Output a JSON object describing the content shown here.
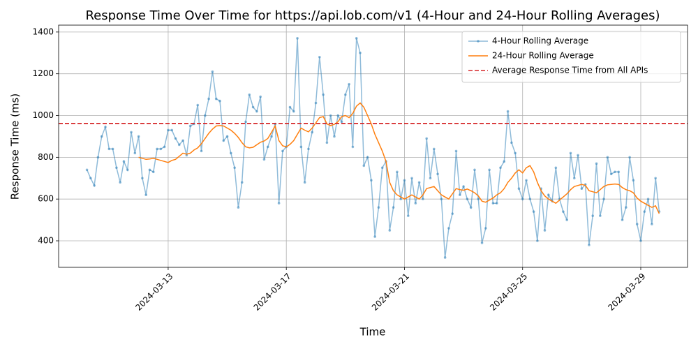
{
  "chart_data": {
    "type": "line",
    "title": "Response Time Over Time for https://api.lob.com/v1 (4-Hour and 24-Hour Rolling Averages)",
    "x_label": "Time",
    "y_label": "Response Time (ms)",
    "x": [
      "2024-03-10 06:00",
      "2024-03-10 09:00",
      "2024-03-10 12:00",
      "2024-03-10 15:00",
      "2024-03-10 18:00",
      "2024-03-10 21:00",
      "2024-03-11 00:00",
      "2024-03-11 03:00",
      "2024-03-11 06:00",
      "2024-03-11 09:00",
      "2024-03-11 12:00",
      "2024-03-11 15:00",
      "2024-03-11 18:00",
      "2024-03-11 21:00",
      "2024-03-12 00:00",
      "2024-03-12 03:00",
      "2024-03-12 06:00",
      "2024-03-12 09:00",
      "2024-03-12 12:00",
      "2024-03-12 15:00",
      "2024-03-12 18:00",
      "2024-03-12 21:00",
      "2024-03-13 00:00",
      "2024-03-13 03:00",
      "2024-03-13 06:00",
      "2024-03-13 09:00",
      "2024-03-13 12:00",
      "2024-03-13 15:00",
      "2024-03-13 18:00",
      "2024-03-13 21:00",
      "2024-03-14 00:00",
      "2024-03-14 03:00",
      "2024-03-14 06:00",
      "2024-03-14 09:00",
      "2024-03-14 12:00",
      "2024-03-14 15:00",
      "2024-03-14 18:00",
      "2024-03-14 21:00",
      "2024-03-15 00:00",
      "2024-03-15 03:00",
      "2024-03-15 06:00",
      "2024-03-15 09:00",
      "2024-03-15 12:00",
      "2024-03-15 15:00",
      "2024-03-15 18:00",
      "2024-03-15 21:00",
      "2024-03-16 00:00",
      "2024-03-16 03:00",
      "2024-03-16 06:00",
      "2024-03-16 09:00",
      "2024-03-16 12:00",
      "2024-03-16 15:00",
      "2024-03-16 18:00",
      "2024-03-16 21:00",
      "2024-03-17 00:00",
      "2024-03-17 03:00",
      "2024-03-17 06:00",
      "2024-03-17 09:00",
      "2024-03-17 12:00",
      "2024-03-17 15:00",
      "2024-03-17 18:00",
      "2024-03-17 21:00",
      "2024-03-18 00:00",
      "2024-03-18 03:00",
      "2024-03-18 06:00",
      "2024-03-18 09:00",
      "2024-03-18 12:00",
      "2024-03-18 15:00",
      "2024-03-18 18:00",
      "2024-03-18 21:00",
      "2024-03-19 00:00",
      "2024-03-19 03:00",
      "2024-03-19 06:00",
      "2024-03-19 09:00",
      "2024-03-19 12:00",
      "2024-03-19 15:00",
      "2024-03-19 18:00",
      "2024-03-19 21:00",
      "2024-03-20 00:00",
      "2024-03-20 03:00",
      "2024-03-20 06:00",
      "2024-03-20 09:00",
      "2024-03-20 12:00",
      "2024-03-20 15:00",
      "2024-03-20 18:00",
      "2024-03-20 21:00",
      "2024-03-21 00:00",
      "2024-03-21 03:00",
      "2024-03-21 06:00",
      "2024-03-21 09:00",
      "2024-03-21 12:00",
      "2024-03-21 15:00",
      "2024-03-21 18:00",
      "2024-03-21 21:00",
      "2024-03-22 00:00",
      "2024-03-22 03:00",
      "2024-03-22 06:00",
      "2024-03-22 09:00",
      "2024-03-22 12:00",
      "2024-03-22 15:00",
      "2024-03-22 18:00",
      "2024-03-22 21:00",
      "2024-03-23 00:00",
      "2024-03-23 03:00",
      "2024-03-23 06:00",
      "2024-03-23 09:00",
      "2024-03-23 12:00",
      "2024-03-23 15:00",
      "2024-03-23 18:00",
      "2024-03-23 21:00",
      "2024-03-24 00:00",
      "2024-03-24 03:00",
      "2024-03-24 06:00",
      "2024-03-24 09:00",
      "2024-03-24 12:00",
      "2024-03-24 15:00",
      "2024-03-24 18:00",
      "2024-03-24 21:00",
      "2024-03-25 00:00",
      "2024-03-25 03:00",
      "2024-03-25 06:00",
      "2024-03-25 09:00",
      "2024-03-25 12:00",
      "2024-03-25 15:00",
      "2024-03-25 18:00",
      "2024-03-25 21:00",
      "2024-03-26 00:00",
      "2024-03-26 03:00",
      "2024-03-26 06:00",
      "2024-03-26 09:00",
      "2024-03-26 12:00",
      "2024-03-26 15:00",
      "2024-03-26 18:00",
      "2024-03-26 21:00",
      "2024-03-27 00:00",
      "2024-03-27 03:00",
      "2024-03-27 06:00",
      "2024-03-27 09:00",
      "2024-03-27 12:00",
      "2024-03-27 15:00",
      "2024-03-27 18:00",
      "2024-03-27 21:00",
      "2024-03-28 00:00",
      "2024-03-28 03:00",
      "2024-03-28 06:00",
      "2024-03-28 09:00",
      "2024-03-28 12:00",
      "2024-03-28 15:00",
      "2024-03-28 18:00",
      "2024-03-28 21:00",
      "2024-03-29 00:00",
      "2024-03-29 03:00",
      "2024-03-29 06:00",
      "2024-03-29 09:00",
      "2024-03-29 12:00",
      "2024-03-29 15:00"
    ],
    "series": [
      {
        "name": "4-Hour Rolling Average",
        "color": "#1f77b4",
        "opacity": 0.5,
        "marker": true,
        "values": [
          740,
          700,
          665,
          800,
          900,
          945,
          840,
          840,
          750,
          680,
          780,
          740,
          920,
          820,
          900,
          700,
          620,
          740,
          730,
          840,
          840,
          850,
          930,
          930,
          890,
          860,
          880,
          810,
          950,
          960,
          1050,
          830,
          1000,
          1080,
          1210,
          1080,
          1070,
          880,
          900,
          820,
          750,
          560,
          680,
          970,
          1100,
          1040,
          1020,
          1090,
          790,
          850,
          900,
          960,
          580,
          830,
          850,
          1040,
          1020,
          1370,
          850,
          680,
          840,
          920,
          1060,
          1280,
          1100,
          870,
          1000,
          900,
          1000,
          970,
          1100,
          1150,
          850,
          1370,
          1300,
          760,
          800,
          690,
          420,
          560,
          750,
          780,
          450,
          560,
          730,
          600,
          690,
          520,
          700,
          580,
          680,
          600,
          890,
          700,
          840,
          720,
          600,
          320,
          460,
          530,
          830,
          620,
          660,
          600,
          560,
          740,
          600,
          390,
          460,
          740,
          580,
          580,
          750,
          780,
          1020,
          870,
          820,
          650,
          600,
          690,
          600,
          540,
          400,
          650,
          450,
          620,
          590,
          750,
          600,
          540,
          500,
          820,
          700,
          810,
          650,
          670,
          380,
          520,
          770,
          520,
          600,
          800,
          720,
          730,
          730,
          500,
          560,
          800,
          690,
          480,
          400,
          540,
          600,
          480,
          700,
          540
        ]
      },
      {
        "name": "24-Hour Rolling Average",
        "color": "#ff7f0e",
        "opacity": 1,
        "marker": false,
        "values": [
          null,
          null,
          null,
          null,
          null,
          null,
          null,
          null,
          null,
          null,
          null,
          null,
          null,
          null,
          800,
          795,
          790,
          792,
          795,
          790,
          785,
          780,
          775,
          785,
          790,
          805,
          820,
          815,
          820,
          835,
          845,
          865,
          890,
          915,
          935,
          950,
          952,
          950,
          940,
          930,
          915,
          895,
          870,
          850,
          845,
          848,
          860,
          872,
          878,
          890,
          920,
          950,
          880,
          855,
          850,
          862,
          880,
          910,
          940,
          930,
          922,
          940,
          965,
          990,
          995,
          960,
          952,
          958,
          970,
          995,
          1000,
          990,
          1010,
          1045,
          1060,
          1040,
          1000,
          960,
          910,
          870,
          830,
          780,
          680,
          640,
          620,
          610,
          600,
          610,
          620,
          610,
          600,
          620,
          650,
          655,
          660,
          640,
          620,
          610,
          600,
          625,
          650,
          645,
          642,
          648,
          640,
          630,
          615,
          590,
          585,
          595,
          605,
          620,
          630,
          650,
          680,
          700,
          725,
          740,
          725,
          750,
          760,
          730,
          680,
          640,
          615,
          600,
          590,
          580,
          595,
          610,
          625,
          645,
          660,
          665,
          670,
          665,
          640,
          635,
          630,
          645,
          660,
          668,
          670,
          672,
          670,
          655,
          645,
          640,
          630,
          605,
          590,
          580,
          570,
          560,
          568,
          530
        ]
      }
    ],
    "hlines": [
      {
        "name": "Average Response Time from All APIs",
        "color": "#d62728",
        "value": 962
      }
    ],
    "xlim": [
      "2024-03-09 07:00",
      "2024-03-30 14:00"
    ],
    "xticks": [
      {
        "value": "2024-03-13 00:00",
        "label": "2024-03-13"
      },
      {
        "value": "2024-03-17 00:00",
        "label": "2024-03-17"
      },
      {
        "value": "2024-03-21 00:00",
        "label": "2024-03-21"
      },
      {
        "value": "2024-03-25 00:00",
        "label": "2024-03-25"
      },
      {
        "value": "2024-03-29 00:00",
        "label": "2024-03-29"
      }
    ],
    "ylim": [
      273,
      1433
    ],
    "yticks": [
      400,
      600,
      800,
      1000,
      1200,
      1400
    ],
    "grid": true,
    "legend": "upper right"
  }
}
